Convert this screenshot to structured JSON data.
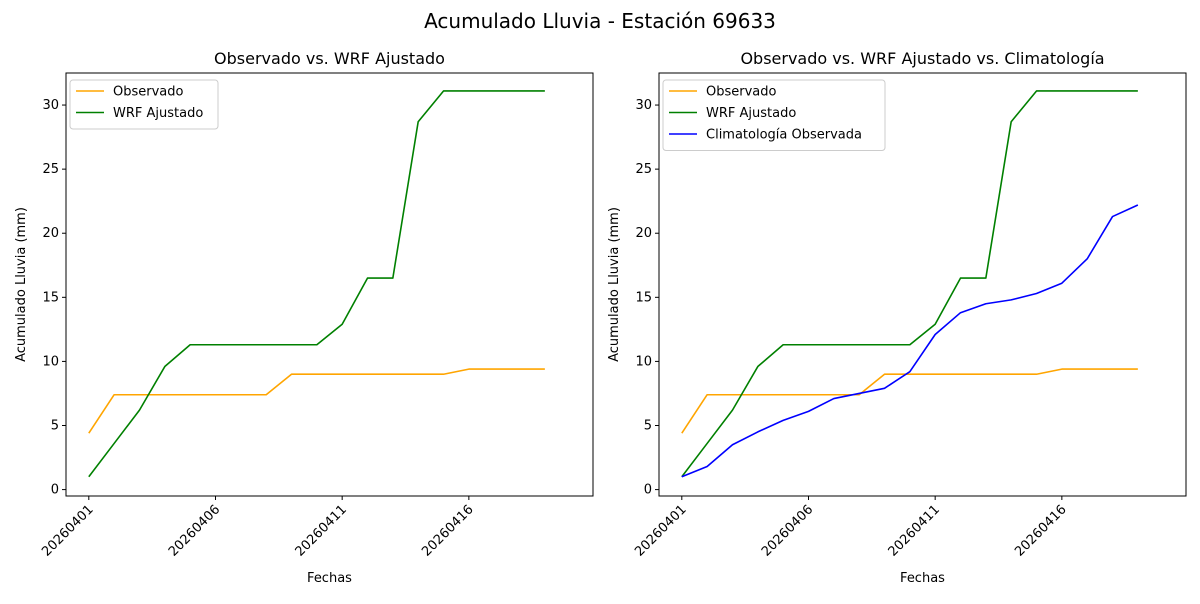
{
  "suptitle": "Acumulado Lluvia - Estación 69633",
  "chart_data": [
    {
      "type": "line",
      "title": "Observado vs. WRF Ajustado",
      "xlabel": "Fechas",
      "ylabel": "Acumulado Lluvia (mm)",
      "x": [
        "20260401",
        "20260402",
        "20260403",
        "20260404",
        "20260405",
        "20260406",
        "20260407",
        "20260408",
        "20260409",
        "20260410",
        "20260411",
        "20260412",
        "20260413",
        "20260414",
        "20260415",
        "20260416",
        "20260417",
        "20260418",
        "20260419"
      ],
      "xticks": [
        "20260401",
        "20260406",
        "20260411",
        "20260416"
      ],
      "yticks": [
        0,
        5,
        10,
        15,
        20,
        25,
        30
      ],
      "xlim": [
        -0.9,
        19.9
      ],
      "ylim": [
        -0.5,
        32.5
      ],
      "grid": false,
      "legend_position": "top-left",
      "series": [
        {
          "name": "Observado",
          "color": "#ffa500",
          "values": [
            4.4,
            7.4,
            7.4,
            7.4,
            7.4,
            7.4,
            7.4,
            7.4,
            9.0,
            9.0,
            9.0,
            9.0,
            9.0,
            9.0,
            9.0,
            9.4,
            9.4,
            9.4,
            9.4
          ]
        },
        {
          "name": "WRF Ajustado",
          "color": "#008000",
          "values": [
            1.0,
            3.6,
            6.2,
            9.6,
            11.3,
            11.3,
            11.3,
            11.3,
            11.3,
            11.3,
            12.9,
            16.5,
            16.5,
            28.7,
            31.1,
            31.1,
            31.1,
            31.1,
            31.1
          ]
        }
      ]
    },
    {
      "type": "line",
      "title": "Observado vs. WRF Ajustado vs. Climatología",
      "xlabel": "Fechas",
      "ylabel": "Acumulado Lluvia (mm)",
      "x": [
        "20260401",
        "20260402",
        "20260403",
        "20260404",
        "20260405",
        "20260406",
        "20260407",
        "20260408",
        "20260409",
        "20260410",
        "20260411",
        "20260412",
        "20260413",
        "20260414",
        "20260415",
        "20260416",
        "20260417",
        "20260418",
        "20260419"
      ],
      "xticks": [
        "20260401",
        "20260406",
        "20260411",
        "20260416"
      ],
      "yticks": [
        0,
        5,
        10,
        15,
        20,
        25,
        30
      ],
      "xlim": [
        -0.9,
        19.9
      ],
      "ylim": [
        -0.5,
        32.5
      ],
      "grid": false,
      "legend_position": "top-left",
      "series": [
        {
          "name": "Observado",
          "color": "#ffa500",
          "values": [
            4.4,
            7.4,
            7.4,
            7.4,
            7.4,
            7.4,
            7.4,
            7.4,
            9.0,
            9.0,
            9.0,
            9.0,
            9.0,
            9.0,
            9.0,
            9.4,
            9.4,
            9.4,
            9.4
          ]
        },
        {
          "name": "WRF Ajustado",
          "color": "#008000",
          "values": [
            1.0,
            3.6,
            6.2,
            9.6,
            11.3,
            11.3,
            11.3,
            11.3,
            11.3,
            11.3,
            12.9,
            16.5,
            16.5,
            28.7,
            31.1,
            31.1,
            31.1,
            31.1,
            31.1
          ]
        },
        {
          "name": "Climatología Observada",
          "color": "#0000ff",
          "values": [
            1.0,
            1.8,
            3.5,
            4.5,
            5.4,
            6.1,
            7.1,
            7.5,
            7.9,
            9.2,
            12.1,
            13.8,
            14.5,
            14.8,
            15.3,
            16.1,
            18.0,
            21.3,
            22.2
          ]
        }
      ]
    }
  ]
}
